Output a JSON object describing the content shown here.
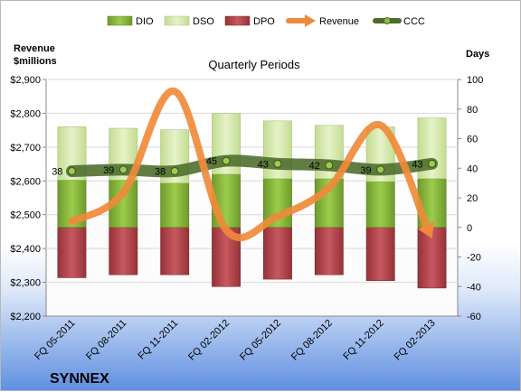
{
  "chart_data": {
    "type": "bar",
    "title": "Quarterly Periods",
    "company": "SYNNEX",
    "left_axis_label": [
      "Revenue",
      "$millions"
    ],
    "right_axis_label": "Days",
    "categories": [
      "FQ 05-2011",
      "FQ 08-2011",
      "FQ 11-2011",
      "FQ 02-2012",
      "FQ 05-2012",
      "FQ 08-2012",
      "FQ 11-2012",
      "FQ 02-2013"
    ],
    "left_axis": {
      "min": 2200,
      "max": 2900,
      "step": 100,
      "ticks": [
        "$2,200",
        "$2,300",
        "$2,400",
        "$2,500",
        "$2,600",
        "$2,700",
        "$2,800",
        "$2,900"
      ]
    },
    "right_axis": {
      "min": -60,
      "max": 100,
      "step": 20,
      "ticks": [
        "-60",
        "-40",
        "-20",
        "0",
        "20",
        "40",
        "60",
        "80",
        "100"
      ]
    },
    "legend": [
      "DIO",
      "DSO",
      "DPO",
      "Revenue",
      "CCC"
    ],
    "legend_position": "top",
    "colors": {
      "DIO": "#8cbf3f",
      "DSO": "#d7eab0",
      "DPO": "#b8484f",
      "Revenue": "#f08a3a",
      "CCC": "#4c6b2a"
    },
    "series": [
      {
        "name": "DIO",
        "axis": "right",
        "values": [
          32,
          32,
          30,
          36,
          33,
          33,
          31,
          33
        ]
      },
      {
        "name": "DSO",
        "axis": "right",
        "values": [
          36,
          35,
          36,
          41,
          39,
          36,
          37,
          41
        ]
      },
      {
        "name": "DPO",
        "axis": "right",
        "values": [
          -34,
          -32,
          -32,
          -40,
          -35,
          -32,
          -36,
          -41
        ]
      },
      {
        "name": "Revenue",
        "axis": "left",
        "values": [
          2480,
          2565,
          2865,
          2455,
          2495,
          2580,
          2765,
          2430
        ]
      },
      {
        "name": "CCC",
        "axis": "right",
        "values": [
          38,
          39,
          38,
          45,
          43,
          42,
          39,
          43
        ],
        "labels": [
          "38",
          "39",
          "38",
          "45",
          "43",
          "42",
          "39",
          "43"
        ]
      }
    ]
  }
}
